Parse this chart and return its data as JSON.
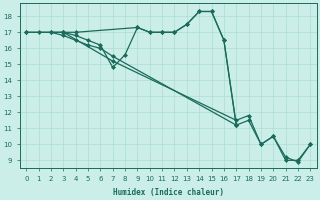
{
  "xlabel": "Humidex (Indice chaleur)",
  "bg_color": "#cceee8",
  "grid_color": "#aaddcc",
  "line_color": "#1a6b5a",
  "xlim": [
    -0.5,
    23.5
  ],
  "ylim": [
    8.5,
    18.8
  ],
  "xticks": [
    0,
    1,
    2,
    3,
    4,
    5,
    6,
    7,
    8,
    9,
    10,
    11,
    12,
    13,
    14,
    15,
    16,
    17,
    18,
    19,
    20,
    21,
    22,
    23
  ],
  "yticks": [
    9,
    10,
    11,
    12,
    13,
    14,
    15,
    16,
    17,
    18
  ],
  "lines": [
    {
      "x": [
        0,
        1,
        2,
        3,
        4,
        9,
        10,
        11,
        12,
        13,
        14,
        15,
        16,
        17
      ],
      "y": [
        17,
        17,
        17,
        17,
        17,
        17.3,
        17,
        17,
        17,
        17.5,
        18.3,
        18.3,
        16.5,
        11.2
      ],
      "marker": "D",
      "markersize": 2.0,
      "linewidth": 0.9
    },
    {
      "x": [
        0,
        3,
        4,
        5,
        6,
        7,
        8,
        9,
        10,
        11,
        12,
        13,
        14,
        15,
        16,
        17
      ],
      "y": [
        17,
        17,
        16.8,
        16.5,
        16.2,
        14.8,
        15.6,
        17.3,
        17,
        17,
        17,
        17.5,
        18.3,
        18.3,
        16.5,
        11.2
      ],
      "marker": "D",
      "markersize": 2.0,
      "linewidth": 0.9
    },
    {
      "x": [
        2,
        3,
        4,
        5,
        6,
        7,
        17,
        18,
        19,
        20,
        21,
        22,
        23
      ],
      "y": [
        17,
        16.8,
        16.5,
        16.2,
        16.0,
        15.5,
        11.2,
        11.5,
        10.0,
        10.5,
        9.0,
        9.0,
        10.0
      ],
      "marker": "D",
      "markersize": 2.0,
      "linewidth": 0.9
    },
    {
      "x": [
        3,
        7,
        17,
        18,
        19,
        20,
        21,
        22,
        23
      ],
      "y": [
        17,
        15.2,
        11.5,
        11.8,
        10.0,
        10.5,
        9.2,
        8.9,
        10.0
      ],
      "marker": "D",
      "markersize": 2.0,
      "linewidth": 0.9
    }
  ]
}
